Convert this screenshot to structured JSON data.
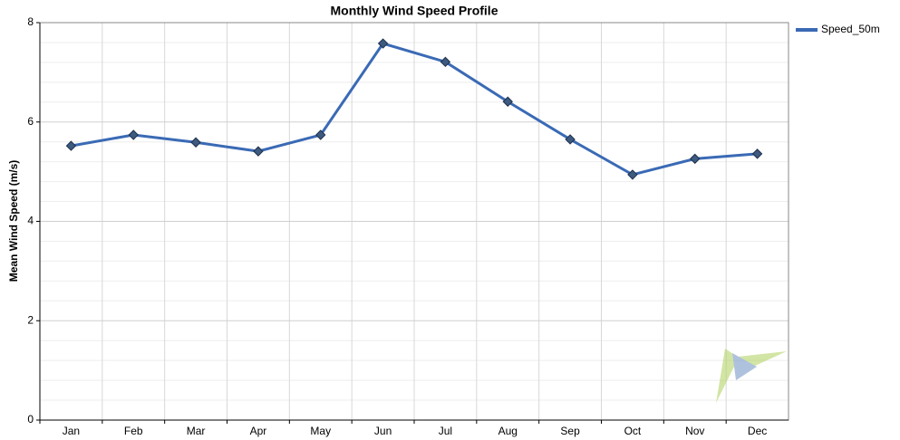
{
  "chart_data": {
    "type": "line",
    "title": "Monthly Wind Speed Profile",
    "y_label": "Mean Wind Speed (m/s)",
    "categories": [
      "Jan",
      "Feb",
      "Mar",
      "Apr",
      "May",
      "Jun",
      "Jul",
      "Aug",
      "Sep",
      "Oct",
      "Nov",
      "Dec"
    ],
    "series": [
      {
        "name": "Speed_50m",
        "color": "#3a6ab5",
        "values": [
          5.52,
          5.74,
          5.59,
          5.41,
          5.74,
          7.58,
          7.21,
          6.41,
          5.65,
          4.94,
          5.26,
          5.36
        ]
      }
    ],
    "ylim": [
      0,
      8
    ],
    "yticks": [
      0,
      2,
      4,
      6,
      8
    ],
    "grid": true,
    "legend": "top-right"
  }
}
